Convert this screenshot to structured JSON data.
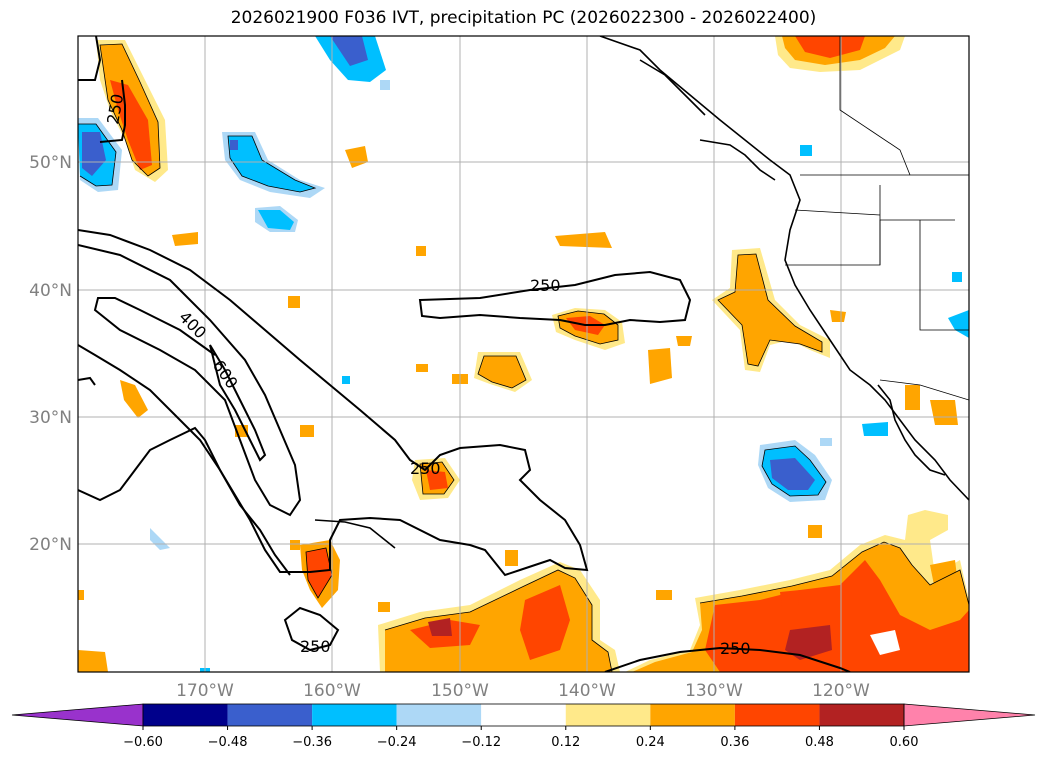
{
  "title": "2026021900 F036 IVT, precipitation PC (2026022300 - 2026022400)",
  "map": {
    "lat_labels": [
      "50°N",
      "40°N",
      "30°N",
      "20°N"
    ],
    "lon_labels": [
      "170°W",
      "160°W",
      "150°W",
      "140°W",
      "130°W",
      "120°W"
    ],
    "contour_labels": [
      "250",
      "400",
      "600",
      "250",
      "250",
      "250",
      "250"
    ],
    "fill_colors": {
      "neg_060": "#9932cc",
      "neg_048": "#00008b",
      "neg_036": "#3a5fcd",
      "neg_024": "#00bfff",
      "neg_012": "#add8f6",
      "zero": "#ffffff",
      "pos_012": "#ffe98a",
      "pos_024": "#ffa500",
      "pos_036": "#ff4500",
      "pos_048": "#b22222",
      "pos_060": "#ff82ab"
    }
  },
  "colorbar": {
    "ticks": [
      "−0.60",
      "−0.48",
      "−0.36",
      "−0.24",
      "−0.12",
      "0.12",
      "0.24",
      "0.36",
      "0.48",
      "0.60"
    ],
    "colors": [
      "#9932cc",
      "#00008b",
      "#3a5fcd",
      "#00bfff",
      "#add8f6",
      "#ffffff",
      "#ffe98a",
      "#ffa500",
      "#ff4500",
      "#b22222",
      "#ff82ab"
    ]
  }
}
